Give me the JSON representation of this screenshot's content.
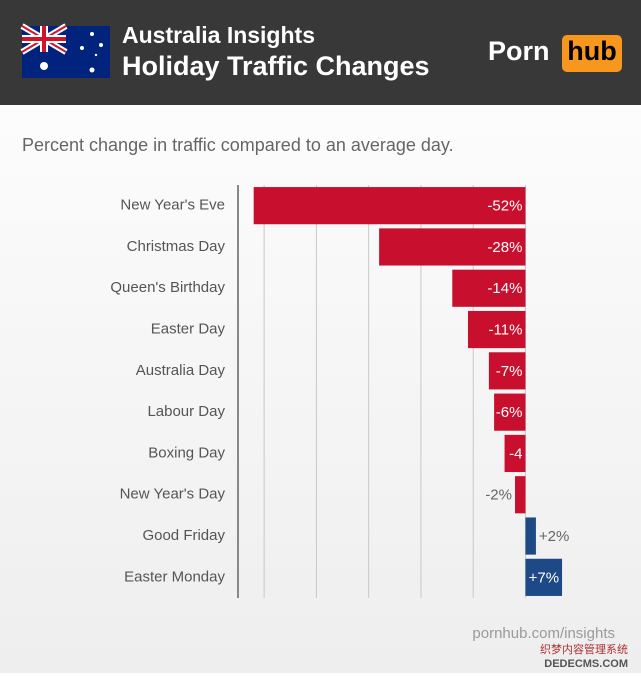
{
  "header": {
    "title": "Australia Insights",
    "subtitle": "Holiday Traffic Changes",
    "logo_left": "Porn",
    "logo_right": "hub"
  },
  "chart_data": {
    "type": "hbar",
    "title": "Percent change in traffic compared to an average day.",
    "categories": [
      "New Year's Eve",
      "Christmas Day",
      "Queen's Birthday",
      "Easter Day",
      "Australia Day",
      "Labour Day",
      "Boxing Day",
      "New Year's Day",
      "Good Friday",
      "Easter Monday"
    ],
    "values": [
      -52,
      -28,
      -14,
      -11,
      -7,
      -6,
      -4,
      -2,
      2,
      7
    ],
    "value_labels": [
      "-52%",
      "-28%",
      "-14%",
      "-11%",
      "-7%",
      "-6%",
      "-4",
      "-2%",
      "+2%",
      "+7%"
    ],
    "negative_color": "#c8102e",
    "positive_color": "#1d4a86",
    "xlim": [
      -55,
      20
    ],
    "xticks": [
      -50,
      -40,
      -30,
      -20,
      -10,
      0
    ],
    "grid": true
  },
  "footer": {
    "source": "pornhub.com/insights",
    "watermark": "织梦内容管理系统",
    "watermark_site": "DEDECMS.COM"
  }
}
